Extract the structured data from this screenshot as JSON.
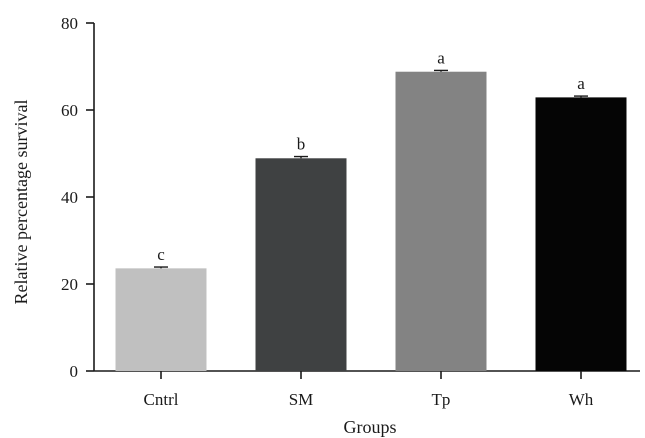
{
  "chart_data": {
    "type": "bar",
    "categories": [
      "Cntrl",
      "SM",
      "Tp",
      "Wh"
    ],
    "values": [
      23.6,
      48.9,
      68.8,
      62.9
    ],
    "errors": [
      0.3,
      0.4,
      0.3,
      0.3
    ],
    "significance_labels": [
      "c",
      "b",
      "a",
      "a"
    ],
    "bar_colors": [
      "#c0c0c0",
      "#3f4142",
      "#838383",
      "#050505"
    ],
    "xlabel": "Groups",
    "ylabel": "Relative percentage survival",
    "ylim": [
      0,
      80
    ],
    "yticks": [
      0,
      20,
      40,
      60,
      80
    ],
    "ytick_labels": [
      "0",
      "20",
      "40",
      "60",
      "80"
    ],
    "grid": false,
    "legend": false
  }
}
